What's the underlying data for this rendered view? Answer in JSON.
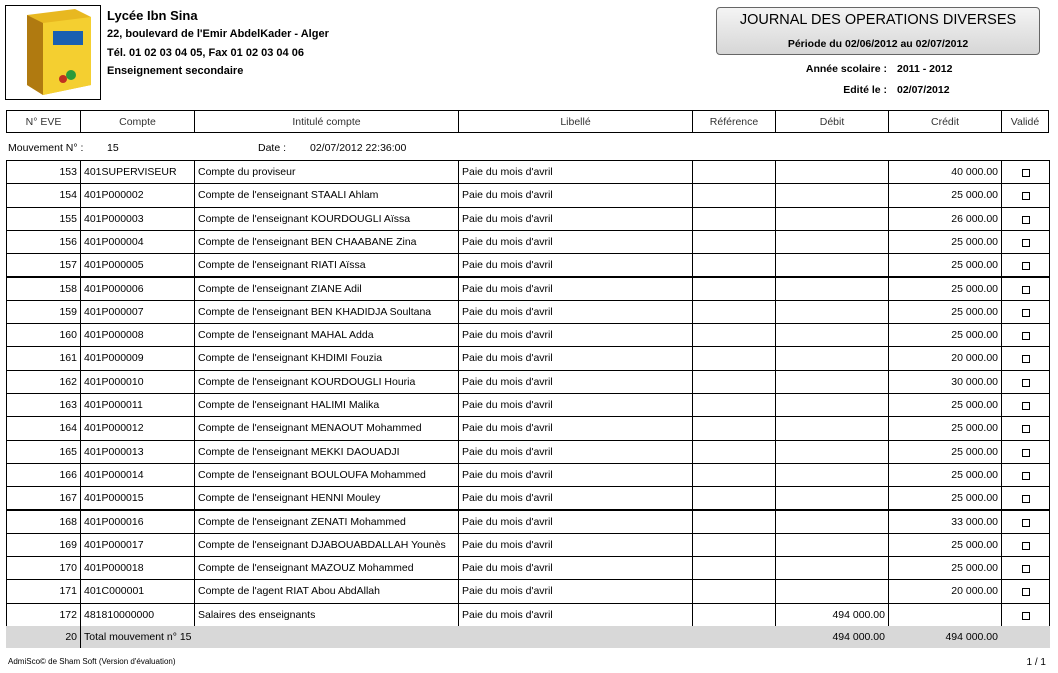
{
  "header": {
    "school": "Lycée Ibn Sina",
    "address": "22, boulevard de l'Emir AbdelKader - Alger",
    "phone": "Tél. 01 02 03 04 05, Fax 01 02 03 04 06",
    "level": "Enseignement secondaire",
    "title": "JOURNAL DES OPERATIONS DIVERSES",
    "period": "Période du 02/06/2012 au 02/07/2012",
    "year_label": "Année scolaire  :",
    "year": "2011 - 2012",
    "edited_label": "Edité le  :",
    "edited": "02/07/2012"
  },
  "table": {
    "columns": [
      "N° EVE",
      "Compte",
      "Intitulé compte",
      "Libellé",
      "Référence",
      "Débit",
      "Crédit",
      "Validé"
    ],
    "movement": {
      "label": "Mouvement N° :",
      "number": "15",
      "date_label": "Date :",
      "date": "02/07/2012 22:36:00"
    },
    "rows": [
      {
        "n": "153",
        "compte": "401SUPERVISEUR",
        "intitule": "Compte du proviseur",
        "libelle": "Paie du mois d'avril",
        "credit": "40 000.00"
      },
      {
        "n": "154",
        "compte": "401P000002",
        "intitule": "Compte de l'enseignant STAALI Ahlam",
        "libelle": "Paie du mois d'avril",
        "credit": "25 000.00"
      },
      {
        "n": "155",
        "compte": "401P000003",
        "intitule": "Compte de l'enseignant KOURDOUGLI Aïssa",
        "libelle": "Paie du mois d'avril",
        "credit": "26 000.00"
      },
      {
        "n": "156",
        "compte": "401P000004",
        "intitule": "Compte de l'enseignant BEN CHAABANE Zina",
        "libelle": "Paie du mois d'avril",
        "credit": "25 000.00"
      },
      {
        "n": "157",
        "compte": "401P000005",
        "intitule": "Compte de l'enseignant RIATI Aïssa",
        "libelle": "Paie du mois d'avril",
        "credit": "25 000.00"
      },
      {
        "n": "158",
        "compte": "401P000006",
        "intitule": "Compte de l'enseignant ZIANE Adil",
        "libelle": "Paie du mois d'avril",
        "credit": "25 000.00"
      },
      {
        "n": "159",
        "compte": "401P000007",
        "intitule": "Compte de l'enseignant BEN KHADIDJA Soultana",
        "libelle": "Paie du mois d'avril",
        "credit": "25 000.00"
      },
      {
        "n": "160",
        "compte": "401P000008",
        "intitule": "Compte de l'enseignant MAHAL Adda",
        "libelle": "Paie du mois d'avril",
        "credit": "25 000.00"
      },
      {
        "n": "161",
        "compte": "401P000009",
        "intitule": "Compte de l'enseignant KHDIMI Fouzia",
        "libelle": "Paie du mois d'avril",
        "credit": "20 000.00"
      },
      {
        "n": "162",
        "compte": "401P000010",
        "intitule": "Compte de l'enseignant KOURDOUGLI Houria",
        "libelle": "Paie du mois d'avril",
        "credit": "30 000.00"
      },
      {
        "n": "163",
        "compte": "401P000011",
        "intitule": "Compte de l'enseignant HALIMI Malika",
        "libelle": "Paie du mois d'avril",
        "credit": "25 000.00"
      },
      {
        "n": "164",
        "compte": "401P000012",
        "intitule": "Compte de l'enseignant MENAOUT Mohammed",
        "libelle": "Paie du mois d'avril",
        "credit": "25 000.00"
      },
      {
        "n": "165",
        "compte": "401P000013",
        "intitule": "Compte de l'enseignant MEKKI DAOUADJI",
        "libelle": "Paie du mois d'avril",
        "credit": "25 000.00"
      },
      {
        "n": "166",
        "compte": "401P000014",
        "intitule": "Compte de l'enseignant BOULOUFA Mohammed",
        "libelle": "Paie du mois d'avril",
        "credit": "25 000.00"
      },
      {
        "n": "167",
        "compte": "401P000015",
        "intitule": "Compte de l'enseignant HENNI Mouley",
        "libelle": "Paie du mois d'avril",
        "credit": "25 000.00"
      },
      {
        "n": "168",
        "compte": "401P000016",
        "intitule": "Compte de l'enseignant ZENATI Mohammed",
        "libelle": "Paie du mois d'avril",
        "credit": "33 000.00"
      },
      {
        "n": "169",
        "compte": "401P000017",
        "intitule": "Compte de l'enseignant DJABOUABDALLAH Younès",
        "libelle": "Paie du mois d'avril",
        "credit": "25 000.00"
      },
      {
        "n": "170",
        "compte": "401P000018",
        "intitule": "Compte de l'enseignant MAZOUZ Mohammed",
        "libelle": "Paie du mois d'avril",
        "credit": "25 000.00"
      },
      {
        "n": "171",
        "compte": "401C000001",
        "intitule": "Compte de l'agent RIAT Abou AbdAllah",
        "libelle": "Paie du mois d'avril",
        "credit": "20 000.00"
      },
      {
        "n": "172",
        "compte": "481810000000",
        "intitule": "Salaires des enseignants",
        "libelle": "Paie du mois d'avril",
        "debit": "494 000.00"
      }
    ],
    "total": {
      "n": "20",
      "label": "Total mouvement n° 15",
      "debit": "494 000.00",
      "credit": "494 000.00"
    }
  },
  "footer": {
    "copyright": "AdmiSco© de Sham Soft (Version d'évaluation)",
    "page": "1 / 1"
  }
}
